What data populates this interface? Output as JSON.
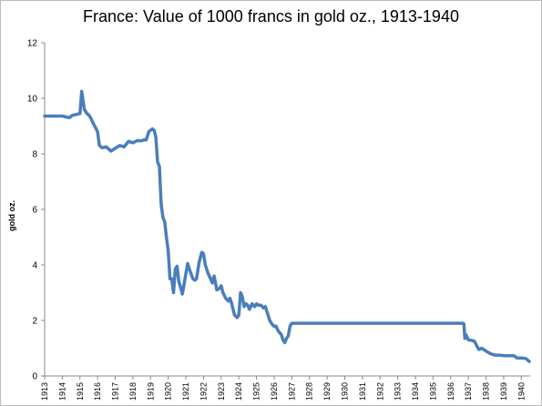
{
  "chart_data": {
    "type": "line",
    "title": "France: Value of 1000 francs in gold oz., 1913-1940",
    "xlabel": "",
    "ylabel": "gold oz.",
    "xlim": [
      1913,
      1940.5
    ],
    "ylim": [
      0,
      12
    ],
    "yticks": [
      0,
      2,
      4,
      6,
      8,
      10,
      12
    ],
    "xticks": [
      1913,
      1914,
      1915,
      1916,
      1917,
      1918,
      1919,
      1920,
      1921,
      1922,
      1923,
      1924,
      1925,
      1926,
      1927,
      1928,
      1929,
      1930,
      1931,
      1932,
      1933,
      1934,
      1935,
      1936,
      1937,
      1938,
      1939,
      1940
    ],
    "grid": false,
    "series": [
      {
        "color": "#4a7ebb",
        "x": [
          1913.0,
          1913.5,
          1914.0,
          1914.4,
          1914.5,
          1914.55,
          1914.65,
          1914.8,
          1915.0,
          1915.1,
          1915.25,
          1915.4,
          1915.5,
          1915.6,
          1915.75,
          1916.0,
          1916.1,
          1916.25,
          1916.5,
          1916.75,
          1917.0,
          1917.25,
          1917.5,
          1917.75,
          1918.0,
          1918.25,
          1918.5,
          1918.6,
          1918.75,
          1918.9,
          1919.0,
          1919.1,
          1919.2,
          1919.3,
          1919.4,
          1919.5,
          1919.6,
          1919.7,
          1919.8,
          1919.9,
          1920.0,
          1920.1,
          1920.2,
          1920.3,
          1920.4,
          1920.5,
          1920.6,
          1920.7,
          1920.8,
          1920.95,
          1921.1,
          1921.25,
          1921.4,
          1921.5,
          1921.6,
          1921.75,
          1921.9,
          1922.0,
          1922.1,
          1922.25,
          1922.4,
          1922.5,
          1922.6,
          1922.75,
          1922.9,
          1923.0,
          1923.1,
          1923.25,
          1923.4,
          1923.5,
          1923.6,
          1923.75,
          1923.9,
          1924.0,
          1924.1,
          1924.2,
          1924.3,
          1924.4,
          1924.5,
          1924.6,
          1924.75,
          1924.9,
          1925.0,
          1925.1,
          1925.25,
          1925.4,
          1925.5,
          1925.6,
          1925.75,
          1925.9,
          1926.0,
          1926.1,
          1926.25,
          1926.4,
          1926.5,
          1926.6,
          1926.7,
          1926.8,
          1926.9,
          1927.0,
          1928.0,
          1929.0,
          1930.0,
          1931.0,
          1932.0,
          1933.0,
          1934.0,
          1935.0,
          1936.0,
          1936.5,
          1936.7,
          1936.75,
          1936.8,
          1936.85,
          1937.0,
          1937.2,
          1937.35,
          1937.5,
          1937.6,
          1937.75,
          1938.0,
          1938.25,
          1938.5,
          1938.75,
          1939.0,
          1939.25,
          1939.5,
          1939.6,
          1939.75,
          1940.0,
          1940.25,
          1940.45
        ],
        "y": [
          9.36,
          9.36,
          9.36,
          9.3,
          9.35,
          9.38,
          9.4,
          9.42,
          9.45,
          10.25,
          9.6,
          9.45,
          9.4,
          9.3,
          9.1,
          8.8,
          8.3,
          8.22,
          8.25,
          8.1,
          8.2,
          8.3,
          8.25,
          8.45,
          8.4,
          8.48,
          8.47,
          8.5,
          8.5,
          8.8,
          8.85,
          8.9,
          8.85,
          8.6,
          7.7,
          7.55,
          6.2,
          5.7,
          5.55,
          5.0,
          4.5,
          3.5,
          3.5,
          3.0,
          3.85,
          3.95,
          3.4,
          3.2,
          2.95,
          3.5,
          4.05,
          3.75,
          3.5,
          3.45,
          3.5,
          4.1,
          4.45,
          4.4,
          4.0,
          3.7,
          3.5,
          3.35,
          3.6,
          3.1,
          3.15,
          3.25,
          3.0,
          2.8,
          2.7,
          2.8,
          2.6,
          2.2,
          2.1,
          2.2,
          3.0,
          2.85,
          2.5,
          2.6,
          2.55,
          2.4,
          2.6,
          2.5,
          2.6,
          2.55,
          2.55,
          2.45,
          2.5,
          2.3,
          2.0,
          1.85,
          1.78,
          1.8,
          1.6,
          1.5,
          1.3,
          1.2,
          1.35,
          1.45,
          1.8,
          1.9,
          1.9,
          1.9,
          1.9,
          1.9,
          1.9,
          1.9,
          1.9,
          1.9,
          1.9,
          1.9,
          1.9,
          1.88,
          1.35,
          1.5,
          1.3,
          1.28,
          1.25,
          1.05,
          0.95,
          1.0,
          0.9,
          0.8,
          0.75,
          0.75,
          0.73,
          0.73,
          0.73,
          0.72,
          0.65,
          0.65,
          0.63,
          0.52
        ]
      }
    ]
  }
}
